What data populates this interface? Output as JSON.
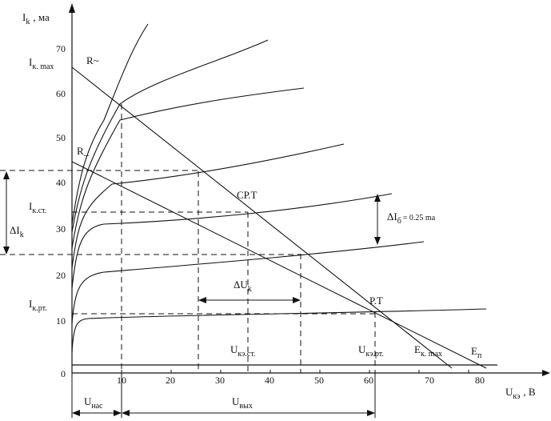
{
  "axes": {
    "y_symbol": "I",
    "y_subscript": "k",
    "y_unit": ", ма",
    "x_symbol": "U",
    "x_subscript": "кэ",
    "x_unit": ", B",
    "origin": "0",
    "x_ticks": [
      "10",
      "20",
      "30",
      "40",
      "50",
      "60",
      "70",
      "80"
    ],
    "y_ticks": [
      "10",
      "20",
      "30",
      "40",
      "50",
      "60",
      "70"
    ]
  },
  "labels": {
    "r_ac": "R~",
    "r_dc": "R_",
    "ik_max": "I",
    "ik_max_sub": "к. max",
    "ik_st": "I",
    "ik_st_sub": "к.ст.",
    "ik_rt": "I",
    "ik_rt_sub": "к.рт.",
    "delta_ik": "ΔI",
    "delta_ik_sub": "k",
    "delta_ib": "ΔI",
    "delta_ib_sub": "б",
    "delta_ib_value": "= 0.25 ma",
    "delta_uk": "ΔU",
    "delta_uk_sub": "k",
    "sr_t": "СР.Т",
    "r_t": "Р.Т",
    "uke_st": "U",
    "uke_st_sub": "кэ.ст.",
    "uke_rt": "U",
    "uke_rt_sub": "кэ.рт.",
    "ek_max": "E",
    "ek_max_sub": "к. max",
    "ep": "E",
    "ep_sub": "п",
    "u_nas": "U",
    "u_nas_sub": "нас",
    "u_vyh": "U",
    "u_vyh_sub": "вых"
  }
}
